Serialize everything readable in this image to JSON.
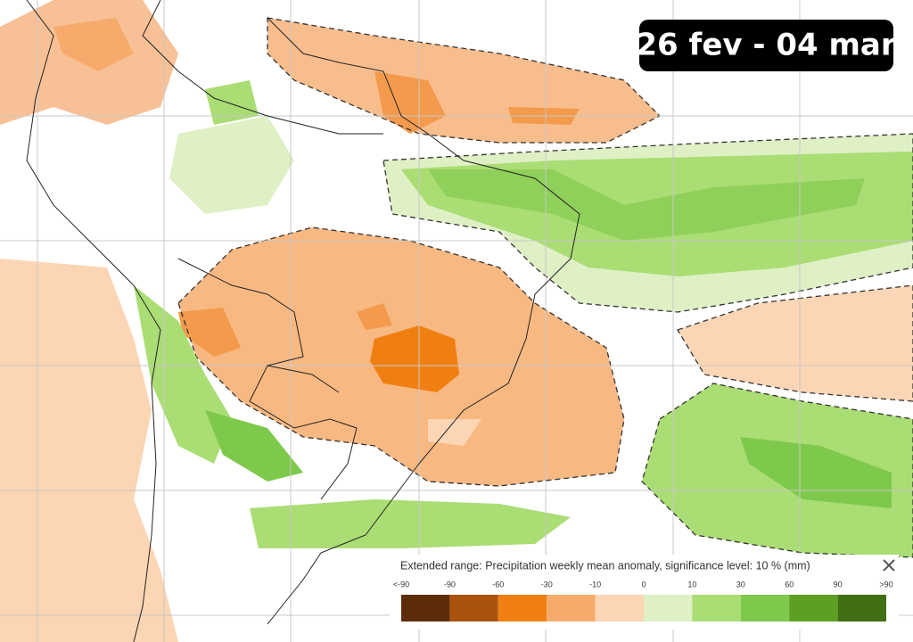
{
  "badge": {
    "text": "26 fev - 04 mar"
  },
  "legend": {
    "title": "Extended range: Precipitation weekly mean anomaly, significance level: 10 % (mm)",
    "labels": [
      "<-90",
      "-90",
      "-60",
      "-30",
      "-10",
      "0",
      "10",
      "30",
      "60",
      "90",
      ">90"
    ],
    "colors": [
      "#5c2c08",
      "#a9530e",
      "#f07f12",
      "#f6ab6c",
      "#fcd5b4",
      "#def0c4",
      "#aadd74",
      "#7ec94c",
      "#5c9f22",
      "#436f14"
    ]
  }
}
